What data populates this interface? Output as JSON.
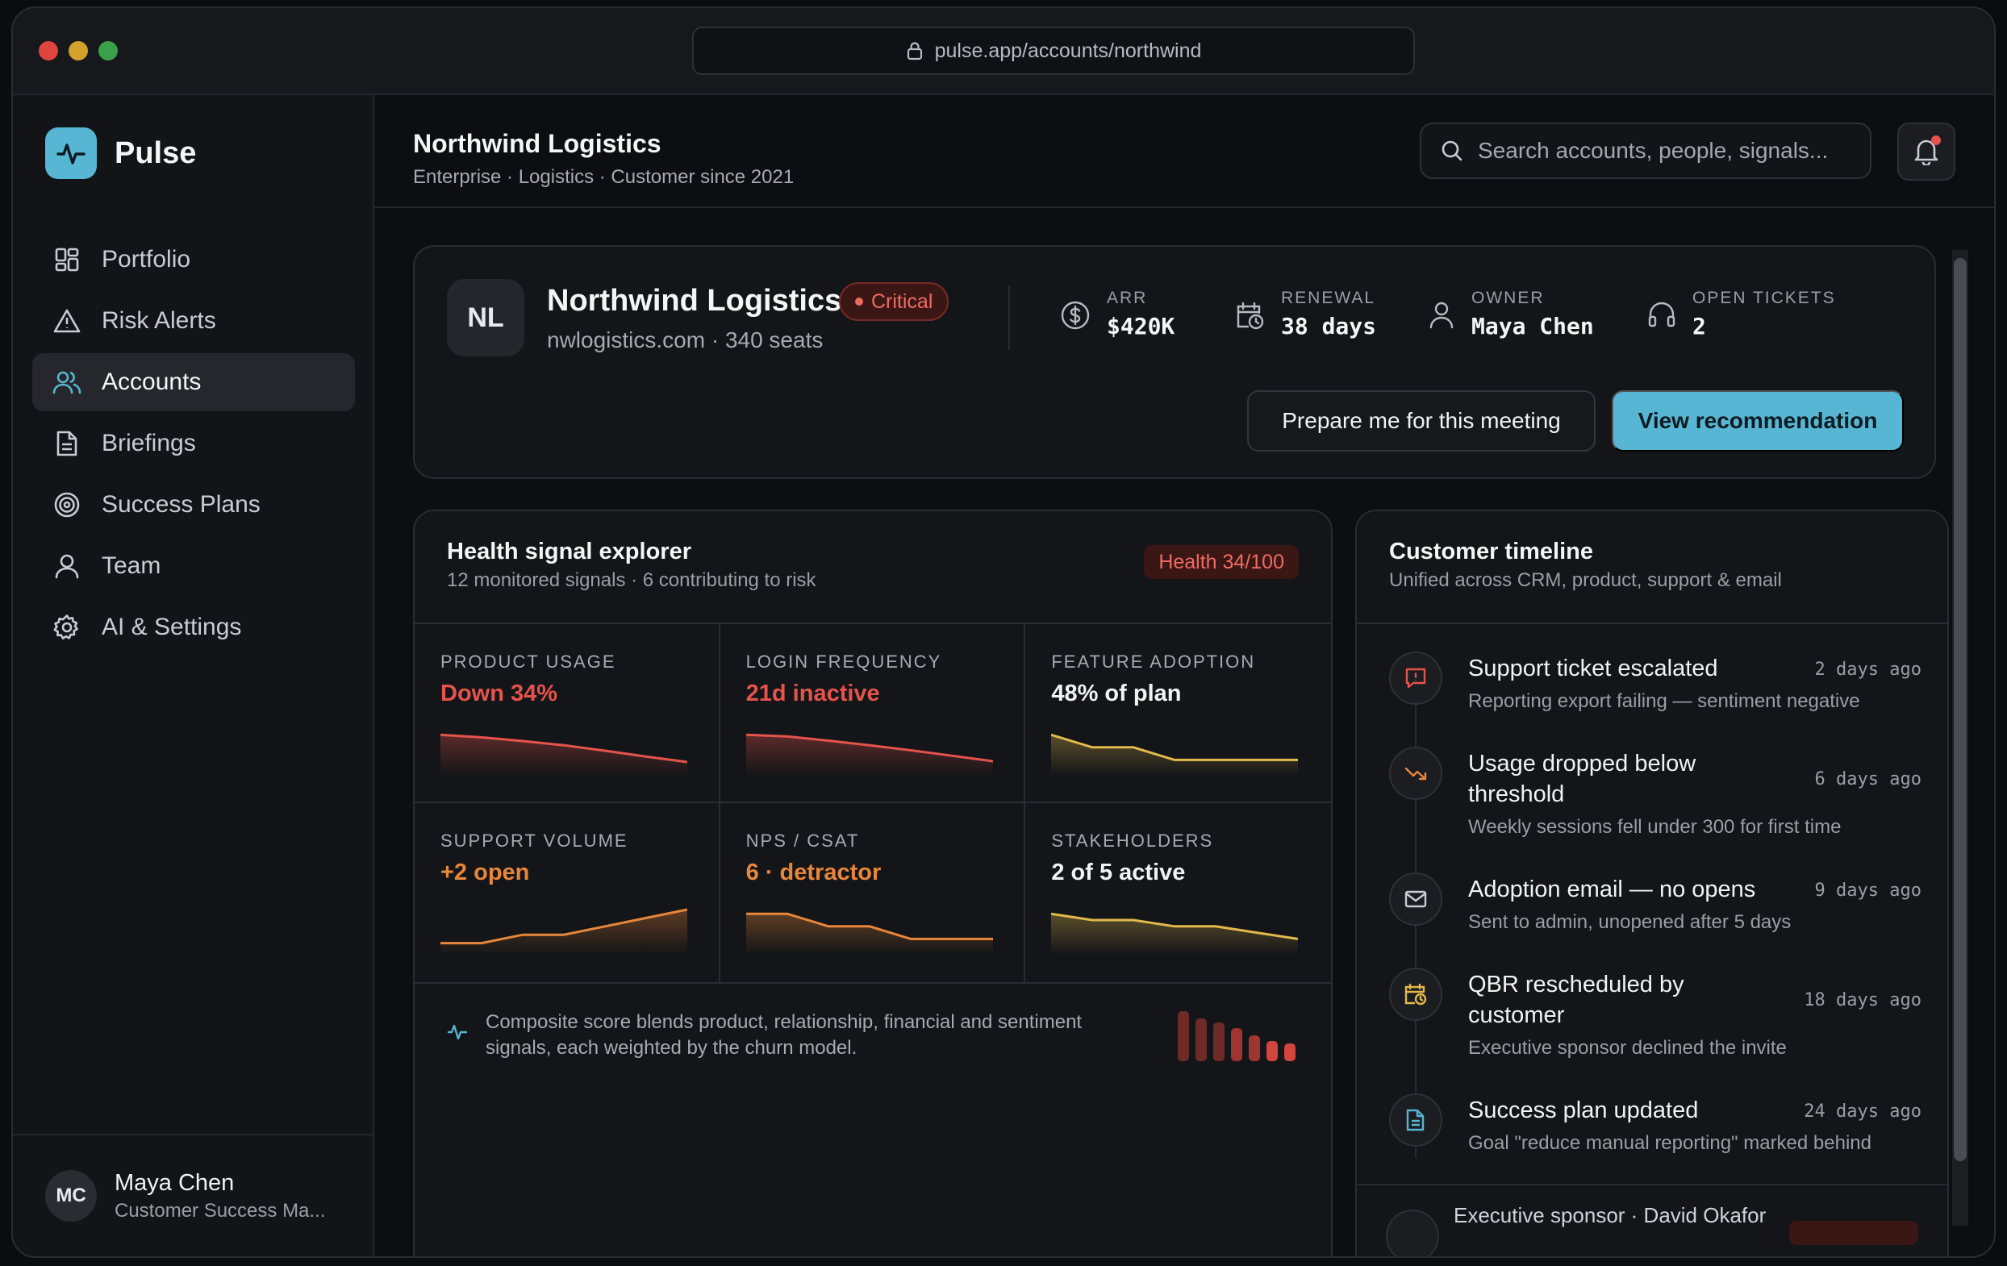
{
  "window": {
    "url": "pulse.app/accounts/northwind",
    "traffic_lights": [
      "#ff5f57",
      "#febc2e",
      "#28c840"
    ]
  },
  "brand": {
    "name": "Pulse",
    "icon": "pulse-activity-icon",
    "color": "#57b6d3"
  },
  "sidebar": {
    "items": [
      {
        "label": "Portfolio",
        "icon": "grid-icon",
        "active": false
      },
      {
        "label": "Risk Alerts",
        "icon": "warning-triangle-icon",
        "active": false
      },
      {
        "label": "Accounts",
        "icon": "users-icon",
        "active": true
      },
      {
        "label": "Briefings",
        "icon": "document-icon",
        "active": false
      },
      {
        "label": "Success Plans",
        "icon": "target-icon",
        "active": false
      },
      {
        "label": "Team",
        "icon": "user-icon",
        "active": false
      },
      {
        "label": "AI & Settings",
        "icon": "gear-icon",
        "active": false
      }
    ],
    "user": {
      "initials": "MC",
      "name": "Maya Chen",
      "role": "Customer Success Ma..."
    }
  },
  "header": {
    "title": "Northwind Logistics",
    "subtitle": "Enterprise · Logistics · Customer since 2021",
    "search_placeholder": "Search accounts, people, signals...",
    "notification_dot": true
  },
  "account": {
    "initials": "NL",
    "name": "Northwind Logistics",
    "status": "Critical",
    "meta": "nwlogistics.com · 340 seats",
    "kpis": [
      {
        "label": "ARR",
        "value": "$420K",
        "icon": "dollar-icon"
      },
      {
        "label": "RENEWAL",
        "value": "38 days",
        "icon": "calendar-clock-icon"
      },
      {
        "label": "OWNER",
        "value": "Maya Chen",
        "icon": "user-icon"
      },
      {
        "label": "OPEN TICKETS",
        "value": "2",
        "icon": "headset-icon"
      }
    ],
    "secondary_action": "Prepare me for this meeting",
    "primary_action": "View recommendation"
  },
  "health": {
    "title": "Health signal explorer",
    "subtitle": "12 monitored signals · 6 contributing to risk",
    "badge": "Health 34/100",
    "signals": [
      {
        "label": "PRODUCT USAGE",
        "value": "Down 34%",
        "tone": "red",
        "trend": [
          9,
          8.4,
          7.5,
          6.5,
          5.2,
          3.8,
          2.5
        ]
      },
      {
        "label": "LOGIN FREQUENCY",
        "value": "21d inactive",
        "tone": "red",
        "trend": [
          9,
          8.6,
          7.6,
          6.5,
          5.3,
          4,
          2.7
        ]
      },
      {
        "label": "FEATURE ADOPTION",
        "value": "48% of plan",
        "tone": "yellow",
        "trend": [
          9,
          6,
          6,
          3,
          3,
          3,
          3
        ]
      },
      {
        "label": "SUPPORT VOLUME",
        "value": "+2 open",
        "tone": "orange",
        "trend": [
          2,
          2,
          4,
          4,
          6,
          8,
          10
        ]
      },
      {
        "label": "NPS / CSAT",
        "value": "6 · detractor",
        "tone": "orange",
        "trend": [
          9,
          9,
          6,
          6,
          3,
          3,
          3
        ]
      },
      {
        "label": "STAKEHOLDERS",
        "value": "2 of 5 active",
        "tone": "yellow",
        "trend": [
          9,
          7.5,
          7.5,
          6,
          6,
          4.5,
          3
        ]
      }
    ],
    "note": "Composite score blends product, relationship, financial and sentiment signals, each weighted by the churn model.",
    "weights": [
      1.0,
      0.85,
      0.78,
      0.66,
      0.52,
      0.4,
      0.36
    ]
  },
  "colors": {
    "red": "#e5534b",
    "orange": "#e8863a",
    "yellow": "#e2b94b"
  },
  "timeline": {
    "title": "Customer timeline",
    "subtitle": "Unified across CRM, product, support & email",
    "events": [
      {
        "title": "Support ticket escalated",
        "desc": "Reporting export failing — sentiment negative",
        "time": "2 days ago",
        "icon": "alert-message-icon"
      },
      {
        "title": "Usage dropped below threshold",
        "desc": "Weekly sessions fell under 300 for first time",
        "time": "6 days ago",
        "icon": "trending-down-icon"
      },
      {
        "title": "Adoption email — no opens",
        "desc": "Sent to admin, unopened after 5 days",
        "time": "9 days ago",
        "icon": "mail-icon"
      },
      {
        "title": "QBR rescheduled by customer",
        "desc": "Executive sponsor declined the invite",
        "time": "18 days ago",
        "icon": "calendar-clock-icon"
      },
      {
        "title": "Success plan updated",
        "desc": "Goal \"reduce manual reporting\" marked behind",
        "time": "24 days ago",
        "icon": "document-icon"
      }
    ],
    "footer": "Executive sponsor · David Okafor"
  }
}
